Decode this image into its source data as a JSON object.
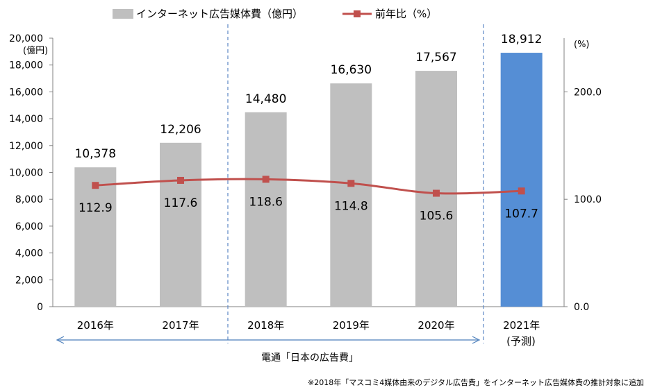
{
  "chart_data": {
    "type": "bar",
    "legend": {
      "bar_label": "インターネット広告媒体費（億円）",
      "line_label": "前年比（%）"
    },
    "categories": [
      "2016年",
      "2017年",
      "2018年",
      "2019年",
      "2020年",
      "2021年"
    ],
    "forecast_note": "(予測)",
    "series": [
      {
        "name": "インターネット広告媒体費（億円）",
        "type": "bar",
        "values": [
          10378,
          12206,
          14480,
          16630,
          17567,
          18912
        ],
        "value_labels": [
          "10,378",
          "12,206",
          "14,480",
          "16,630",
          "17,567",
          "18,912"
        ]
      },
      {
        "name": "前年比（%）",
        "type": "line",
        "values": [
          112.9,
          117.6,
          118.6,
          114.8,
          105.6,
          107.7
        ],
        "value_labels": [
          "112.9",
          "117.6",
          "118.6",
          "114.8",
          "105.6",
          "107.7"
        ]
      }
    ],
    "y_left": {
      "unit_label": "(億円)",
      "ylim": [
        0,
        20000
      ],
      "ticks": [
        0,
        2000,
        4000,
        6000,
        8000,
        10000,
        12000,
        14000,
        16000,
        18000,
        20000
      ],
      "tick_labels": [
        "0",
        "2,000",
        "4,000",
        "6,000",
        "8,000",
        "10,000",
        "12,000",
        "14,000",
        "16,000",
        "18,000",
        "20,000"
      ]
    },
    "y_right": {
      "unit_label": "(%)",
      "ylim": [
        0,
        250
      ],
      "ticks": [
        0,
        100,
        200
      ],
      "tick_labels": [
        "0.0",
        "100.0",
        "200.0"
      ]
    },
    "grid": false,
    "legend_placement": "top",
    "colors": {
      "bar": "#bfbfbf",
      "bar_forecast": "#558ed5",
      "line": "#c0504d",
      "axis": "#808080",
      "divider": "#5b87c5",
      "arrow": "#4a7ebb"
    },
    "span_label": "電通「日本の広告費」",
    "footnote": "※2018年「マスコミ4媒体由来のデジタル広告費」をインターネット広告媒体費の推計対象に追加"
  }
}
